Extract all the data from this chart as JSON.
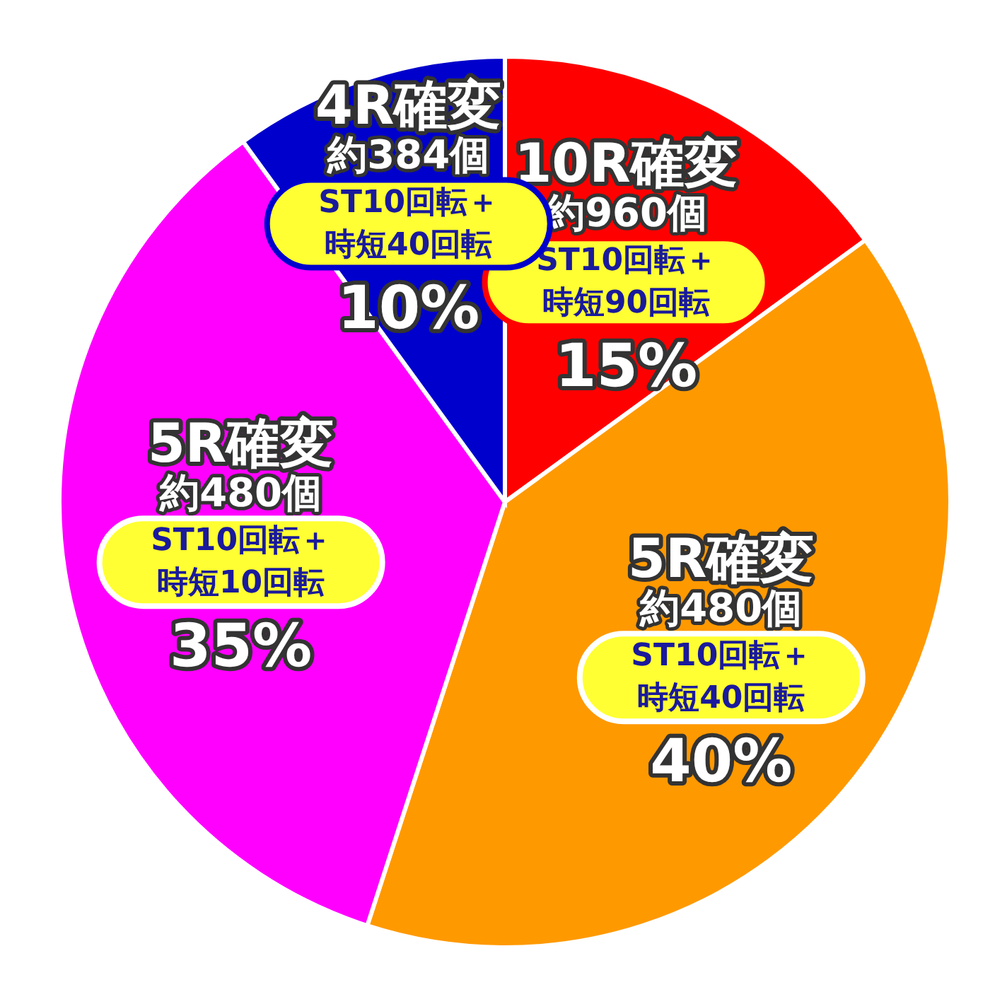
{
  "chart_data": {
    "type": "pie",
    "categories": [
      "10R確変",
      "5R確変",
      "5R確変",
      "4R確変"
    ],
    "values": [
      15,
      40,
      35,
      10
    ],
    "colors": [
      "#ff0000",
      "#ff9900",
      "#ff00ff",
      "#0000cc"
    ],
    "value_labels": [
      "15%",
      "40%",
      "35%",
      "10%"
    ],
    "annotations": [
      "約960個",
      "ST10回転＋",
      "時短90回転",
      "約480個",
      "ST10回転＋",
      "時短40回転",
      "約480個",
      "ST10回転＋",
      "時短10回転",
      "約384個",
      "ST10回転＋",
      "時短40回転"
    ]
  }
}
